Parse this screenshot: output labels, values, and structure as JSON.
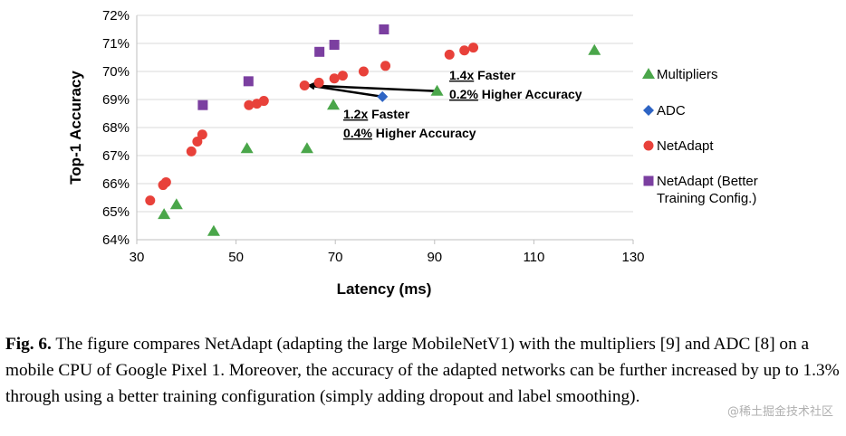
{
  "chart_data": {
    "type": "scatter",
    "xlabel": "Latency (ms)",
    "ylabel": "Top-1 Accuracy",
    "xlim": [
      30,
      130
    ],
    "ylim": [
      64,
      72
    ],
    "xticks": [
      30,
      50,
      70,
      90,
      110,
      130
    ],
    "yticks": [
      64,
      65,
      66,
      67,
      68,
      69,
      70,
      71,
      72
    ],
    "ytick_labels": [
      "64%",
      "65%",
      "66%",
      "67%",
      "68%",
      "69%",
      "70%",
      "71%",
      "72%"
    ],
    "grid": "horizontal",
    "series": [
      {
        "name": "Multipliers",
        "marker": "triangle",
        "color": "#4aa64a",
        "points": [
          [
            35.5,
            64.9
          ],
          [
            38,
            65.25
          ],
          [
            45.5,
            64.3
          ],
          [
            52.2,
            67.25
          ],
          [
            64.3,
            67.25
          ],
          [
            69.6,
            68.8
          ],
          [
            90.5,
            69.3
          ],
          [
            122.2,
            70.75
          ]
        ]
      },
      {
        "name": "ADC",
        "marker": "diamond",
        "color": "#2e64c4",
        "points": [
          [
            79.5,
            69.1
          ]
        ]
      },
      {
        "name": "NetAdapt",
        "marker": "circle",
        "color": "#e8413a",
        "points": [
          [
            32.7,
            65.4
          ],
          [
            35.3,
            65.95
          ],
          [
            35.9,
            66.05
          ],
          [
            41.0,
            67.15
          ],
          [
            42.2,
            67.5
          ],
          [
            43.2,
            67.75
          ],
          [
            52.6,
            68.8
          ],
          [
            54.2,
            68.85
          ],
          [
            55.6,
            68.95
          ],
          [
            63.8,
            69.5
          ],
          [
            66.7,
            69.6
          ],
          [
            69.8,
            69.75
          ],
          [
            71.5,
            69.85
          ],
          [
            75.7,
            70.0
          ],
          [
            80.1,
            70.2
          ],
          [
            93.0,
            70.6
          ],
          [
            96.0,
            70.75
          ],
          [
            97.8,
            70.85
          ]
        ]
      },
      {
        "name": "NetAdapt (Better Training Config.)",
        "legend_lines": [
          "NetAdapt (Better",
          "Training Config.)"
        ],
        "marker": "square",
        "color": "#7b3fa0",
        "points": [
          [
            43.3,
            68.8
          ],
          [
            52.5,
            69.65
          ],
          [
            66.8,
            70.7
          ],
          [
            69.8,
            70.95
          ],
          [
            79.8,
            71.5
          ]
        ]
      }
    ],
    "annotations": [
      {
        "from": [
          90.5,
          69.3
        ],
        "to": [
          63.8,
          69.5
        ],
        "speed_value": "1.4x",
        "speed_text": "Faster",
        "acc_value": "0.2%",
        "acc_text": "Higher Accuracy"
      },
      {
        "from": [
          79.5,
          69.1
        ],
        "to": [
          63.8,
          69.5
        ],
        "speed_value": "1.2x",
        "speed_text": "Faster",
        "acc_value": "0.4%",
        "acc_text": "Higher Accuracy"
      }
    ]
  },
  "caption": {
    "label": "Fig. 6.",
    "text": "The figure compares NetAdapt (adapting the large MobileNetV1) with the multipliers [9] and ADC [8] on a mobile CPU of Google Pixel 1. Moreover, the accuracy of the adapted networks can be further increased by up to 1.3% through using a better training configuration (simply adding dropout and label smoothing)."
  },
  "watermark": "@稀土掘金技术社区"
}
